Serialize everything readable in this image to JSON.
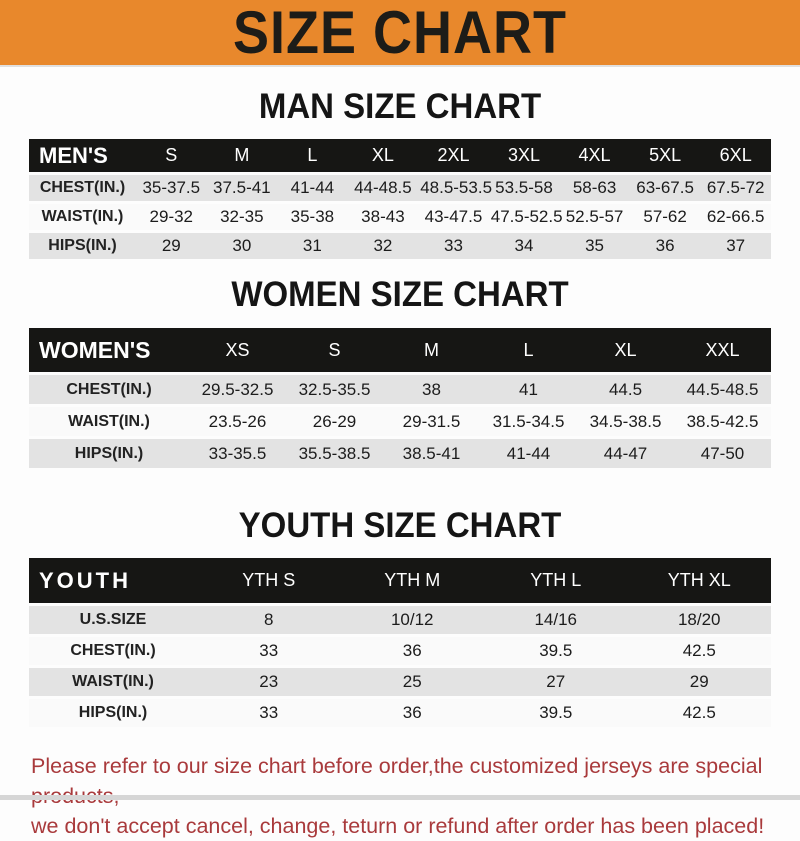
{
  "banner": {
    "title": "SIZE CHART",
    "bg_color": "#e8882c",
    "text_color": "#1d1c18"
  },
  "sections": [
    {
      "heading": "MAN SIZE CHART",
      "header_label": "MEN'S",
      "columns": [
        "S",
        "M",
        "L",
        "XL",
        "2XL",
        "3XL",
        "4XL",
        "5XL",
        "6XL"
      ],
      "rows": [
        {
          "label": "CHEST(IN.)",
          "values": [
            "35-37.5",
            "37.5-41",
            "41-44",
            "44-48.5",
            "48.5-53.5",
            "53.5-58",
            "58-63",
            "63-67.5",
            "67.5-72"
          ]
        },
        {
          "label": "WAIST(IN.)",
          "values": [
            "29-32",
            "32-35",
            "35-38",
            "38-43",
            "43-47.5",
            "47.5-52.5",
            "52.5-57",
            "57-62",
            "62-66.5"
          ]
        },
        {
          "label": "HIPS(IN.)",
          "values": [
            "29",
            "30",
            "31",
            "32",
            "33",
            "34",
            "35",
            "36",
            "37"
          ]
        }
      ]
    },
    {
      "heading": "WOMEN SIZE CHART",
      "header_label": "WOMEN'S",
      "columns": [
        "XS",
        "S",
        "M",
        "L",
        "XL",
        "XXL"
      ],
      "rows": [
        {
          "label": "CHEST(IN.)",
          "values": [
            "29.5-32.5",
            "32.5-35.5",
            "38",
            "41",
            "44.5",
            "44.5-48.5"
          ]
        },
        {
          "label": "WAIST(IN.)",
          "values": [
            "23.5-26",
            "26-29",
            "29-31.5",
            "31.5-34.5",
            "34.5-38.5",
            "38.5-42.5"
          ]
        },
        {
          "label": "HIPS(IN.)",
          "values": [
            "33-35.5",
            "35.5-38.5",
            "38.5-41",
            "41-44",
            "44-47",
            "47-50"
          ]
        }
      ]
    },
    {
      "heading": "YOUTH SIZE CHART",
      "header_label": "YOUTH",
      "columns": [
        "YTH S",
        "YTH M",
        "YTH L",
        "YTH XL"
      ],
      "rows": [
        {
          "label": "U.S.SIZE",
          "values": [
            "8",
            "10/12",
            "14/16",
            "18/20"
          ]
        },
        {
          "label": "CHEST(IN.)",
          "values": [
            "33",
            "36",
            "39.5",
            "42.5"
          ]
        },
        {
          "label": "WAIST(IN.)",
          "values": [
            "23",
            "25",
            "27",
            "29"
          ]
        },
        {
          "label": "HIPS(IN.)",
          "values": [
            "33",
            "36",
            "39.5",
            "42.5"
          ]
        }
      ]
    }
  ],
  "footer": {
    "line1": "Please refer to our size chart before order,the customized jerseys are special products,",
    "line2": "we don't accept cancel, change, teturn or refund after order has been placed!",
    "text_color": "#a93a3c"
  },
  "colors": {
    "header_bar": "#161614",
    "stripe_row": "#e3e3e3",
    "plain_row": "#fafafa"
  }
}
